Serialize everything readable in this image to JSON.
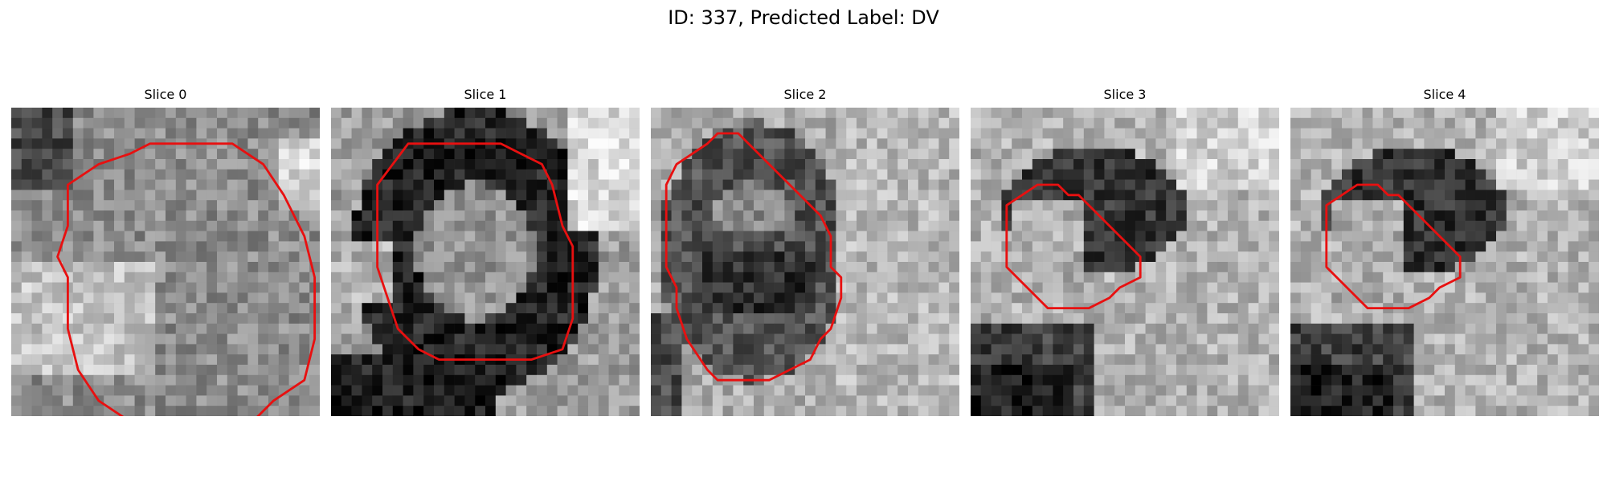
{
  "figure": {
    "title": "ID: 337, Predicted Label: DV",
    "contour_color": "#e81010"
  },
  "slices": [
    {
      "title": "Slice 0",
      "contour": [
        [
          18.5,
          3.5
        ],
        [
          21.5,
          3.5
        ],
        [
          24.5,
          5.5
        ],
        [
          26.5,
          8.5
        ],
        [
          28.5,
          12.5
        ],
        [
          29.5,
          16.5
        ],
        [
          29.5,
          22.5
        ],
        [
          28.5,
          26.5
        ],
        [
          25.5,
          28.5
        ],
        [
          23.5,
          30.5
        ],
        [
          11.5,
          30.5
        ],
        [
          8.5,
          28.5
        ],
        [
          6.5,
          25.5
        ],
        [
          5.5,
          21.5
        ],
        [
          5.5,
          16.5
        ],
        [
          4.5,
          14.5
        ],
        [
          5.5,
          11.5
        ],
        [
          5.5,
          7.5
        ],
        [
          8.5,
          5.5
        ],
        [
          11.5,
          4.5
        ],
        [
          13.5,
          3.5
        ]
      ]
    },
    {
      "title": "Slice 1",
      "contour": [
        [
          7.5,
          3.5
        ],
        [
          16.5,
          3.5
        ],
        [
          18.5,
          4.5
        ],
        [
          20.5,
          5.5
        ],
        [
          21.5,
          7.5
        ],
        [
          22.5,
          11.5
        ],
        [
          23.5,
          13.5
        ],
        [
          23.5,
          20.5
        ],
        [
          22.5,
          23.5
        ],
        [
          19.5,
          24.5
        ],
        [
          10.5,
          24.5
        ],
        [
          8.5,
          23.5
        ],
        [
          6.5,
          21.5
        ],
        [
          5.5,
          18.5
        ],
        [
          4.5,
          15.5
        ],
        [
          4.5,
          7.5
        ]
      ]
    },
    {
      "title": "Slice 2",
      "contour": [
        [
          8.5,
          2.5
        ],
        [
          10.5,
          4.5
        ],
        [
          12.5,
          6.5
        ],
        [
          14.5,
          8.5
        ],
        [
          16.5,
          10.5
        ],
        [
          17.5,
          12.5
        ],
        [
          17.5,
          15.5
        ],
        [
          18.5,
          16.5
        ],
        [
          18.5,
          18.5
        ],
        [
          17.5,
          21.5
        ],
        [
          16.5,
          22.5
        ],
        [
          15.5,
          24.5
        ],
        [
          13.5,
          25.5
        ],
        [
          11.5,
          26.5
        ],
        [
          6.5,
          26.5
        ],
        [
          5.5,
          25.5
        ],
        [
          3.5,
          22.5
        ],
        [
          2.5,
          19.5
        ],
        [
          2.5,
          17.5
        ],
        [
          1.5,
          15.5
        ],
        [
          1.5,
          7.5
        ],
        [
          2.5,
          5.5
        ],
        [
          5.5,
          3.5
        ],
        [
          6.5,
          2.5
        ]
      ]
    },
    {
      "title": "Slice 3",
      "contour": [
        [
          6.5,
          7.5
        ],
        [
          8.5,
          7.5
        ],
        [
          9.5,
          8.5
        ],
        [
          10.5,
          8.5
        ],
        [
          12.5,
          10.5
        ],
        [
          14.5,
          12.5
        ],
        [
          15.5,
          13.5
        ],
        [
          16.5,
          14.5
        ],
        [
          16.5,
          16.5
        ],
        [
          14.5,
          17.5
        ],
        [
          13.5,
          18.5
        ],
        [
          11.5,
          19.5
        ],
        [
          7.5,
          19.5
        ],
        [
          5.5,
          17.5
        ],
        [
          3.5,
          15.5
        ],
        [
          3.5,
          9.5
        ]
      ]
    },
    {
      "title": "Slice 4",
      "contour": [
        [
          6.5,
          7.5
        ],
        [
          8.5,
          7.5
        ],
        [
          9.5,
          8.5
        ],
        [
          10.5,
          8.5
        ],
        [
          12.5,
          10.5
        ],
        [
          14.5,
          12.5
        ],
        [
          15.5,
          13.5
        ],
        [
          16.5,
          14.5
        ],
        [
          16.5,
          16.5
        ],
        [
          14.5,
          17.5
        ],
        [
          13.5,
          18.5
        ],
        [
          11.5,
          19.5
        ],
        [
          7.5,
          19.5
        ],
        [
          5.5,
          17.5
        ],
        [
          3.5,
          15.5
        ],
        [
          3.5,
          9.5
        ]
      ]
    }
  ]
}
